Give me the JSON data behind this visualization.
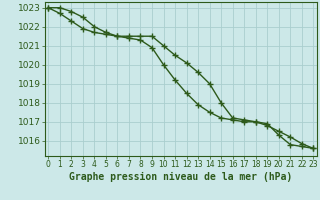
{
  "hours": [
    0,
    1,
    2,
    3,
    4,
    5,
    6,
    7,
    8,
    9,
    10,
    11,
    12,
    13,
    14,
    15,
    16,
    17,
    18,
    19,
    20,
    21,
    22,
    23
  ],
  "series1": [
    1023.0,
    1023.0,
    1022.8,
    1022.5,
    1022.0,
    1021.7,
    1021.5,
    1021.5,
    1021.5,
    1021.5,
    1021.0,
    1020.5,
    1020.1,
    1019.6,
    1019.0,
    1018.0,
    1017.2,
    1017.1,
    1017.0,
    1016.9,
    1016.3,
    1015.8,
    1015.7,
    1015.6
  ],
  "series2": [
    1023.0,
    1022.7,
    1022.3,
    1021.9,
    1021.7,
    1021.6,
    1021.5,
    1021.4,
    1021.3,
    1020.9,
    1020.0,
    1019.2,
    1018.5,
    1017.9,
    1017.5,
    1017.2,
    1017.1,
    1017.0,
    1017.0,
    1016.8,
    1016.5,
    1016.2,
    1015.85,
    1015.6
  ],
  "ylim": [
    1015.2,
    1023.3
  ],
  "yticks": [
    1016,
    1017,
    1018,
    1019,
    1020,
    1021,
    1022,
    1023
  ],
  "xticks": [
    0,
    1,
    2,
    3,
    4,
    5,
    6,
    7,
    8,
    9,
    10,
    11,
    12,
    13,
    14,
    15,
    16,
    17,
    18,
    19,
    20,
    21,
    22,
    23
  ],
  "xlabel": "Graphe pression niveau de la mer (hPa)",
  "line_color": "#2d5a1b",
  "bg_color": "#cce8e8",
  "grid_color_major": "#aacece",
  "grid_color_minor": "#bbdddd",
  "marker": "+",
  "marker_size": 4,
  "linewidth": 1.0,
  "xlabel_fontsize": 7.0,
  "ytick_fontsize": 6.5,
  "xtick_fontsize": 5.5
}
